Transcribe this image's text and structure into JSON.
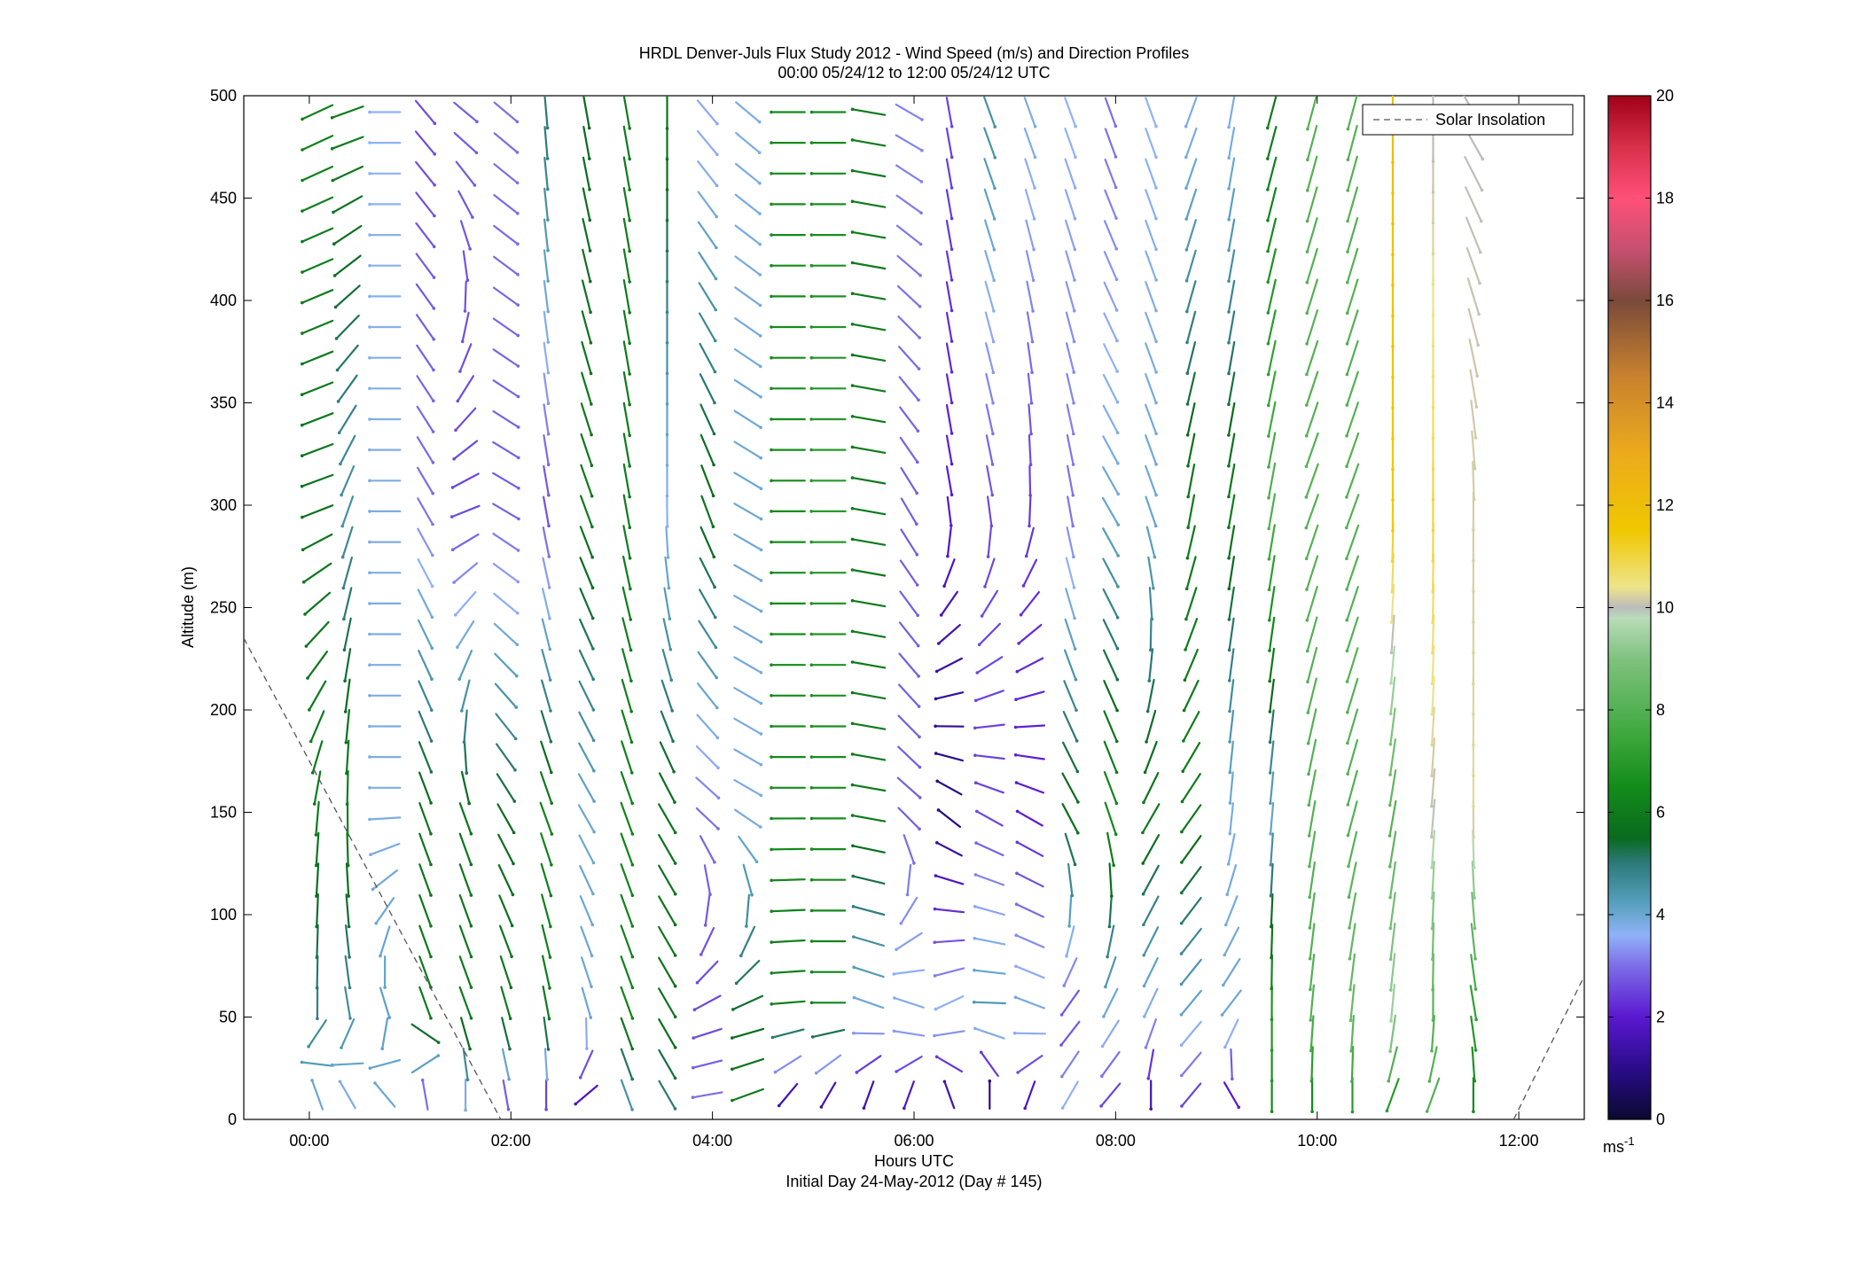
{
  "chart_data": {
    "type": "quiver",
    "title": "HRDL Denver-Juls Flux Study 2012 - Wind Speed (m/s) and Direction Profiles",
    "subtitle": "00:00 05/24/12 to 12:00 05/24/12  UTC",
    "xlabel": "Hours UTC",
    "xlabel2": "Initial Day 24-May-2012 (Day # 145)",
    "ylabel": "Altitude (m)",
    "xlim": [
      -0.65,
      12.65
    ],
    "ylim": [
      0,
      500
    ],
    "x_ticks": [
      {
        "value": 0,
        "label": "00:00"
      },
      {
        "value": 2,
        "label": "02:00"
      },
      {
        "value": 4,
        "label": "04:00"
      },
      {
        "value": 6,
        "label": "06:00"
      },
      {
        "value": 8,
        "label": "08:00"
      },
      {
        "value": 10,
        "label": "10:00"
      },
      {
        "value": 12,
        "label": "12:00"
      }
    ],
    "y_ticks": [
      {
        "value": 0,
        "label": "0"
      },
      {
        "value": 50,
        "label": "50"
      },
      {
        "value": 100,
        "label": "100"
      },
      {
        "value": 150,
        "label": "150"
      },
      {
        "value": 200,
        "label": "200"
      },
      {
        "value": 250,
        "label": "250"
      },
      {
        "value": 300,
        "label": "300"
      },
      {
        "value": 350,
        "label": "350"
      },
      {
        "value": 400,
        "label": "400"
      },
      {
        "value": 450,
        "label": "450"
      },
      {
        "value": 500,
        "label": "500"
      }
    ],
    "legend": {
      "label": "Solar Insolation",
      "position": "top-right",
      "line_style": "dashed"
    },
    "solar_insolation": [
      {
        "x": -0.65,
        "y": 235
      },
      {
        "x": 1.9,
        "y": 0
      },
      {
        "x": 11.95,
        "y": 0
      },
      {
        "x": 12.65,
        "y": 70
      }
    ],
    "colorbar": {
      "min": 0,
      "max": 20,
      "ticks": [
        "0",
        "2",
        "4",
        "6",
        "8",
        "10",
        "12",
        "14",
        "16",
        "18",
        "20"
      ],
      "unit_label": "ms",
      "unit_exponent": "-1",
      "stops": [
        {
          "v": 0,
          "c": "#0b0930"
        },
        {
          "v": 1,
          "c": "#2a0c8a"
        },
        {
          "v": 2,
          "c": "#5a18d0"
        },
        {
          "v": 3,
          "c": "#7d6ee8"
        },
        {
          "v": 3.6,
          "c": "#8fb2f7"
        },
        {
          "v": 4.2,
          "c": "#59a1c0"
        },
        {
          "v": 5,
          "c": "#2c7a7a"
        },
        {
          "v": 5.5,
          "c": "#0a6a1e"
        },
        {
          "v": 6.5,
          "c": "#138c1a"
        },
        {
          "v": 7.5,
          "c": "#3da83d"
        },
        {
          "v": 9,
          "c": "#7fc27f"
        },
        {
          "v": 9.8,
          "c": "#b9dcb9"
        },
        {
          "v": 10,
          "c": "#bbbbbb"
        },
        {
          "v": 10.4,
          "c": "#eee48a"
        },
        {
          "v": 11.5,
          "c": "#f0c800"
        },
        {
          "v": 13,
          "c": "#ebab1c"
        },
        {
          "v": 14.5,
          "c": "#c9822e"
        },
        {
          "v": 16,
          "c": "#7a4a3a"
        },
        {
          "v": 17,
          "c": "#c75070"
        },
        {
          "v": 18,
          "c": "#ff5078"
        },
        {
          "v": 19,
          "c": "#d8304a"
        },
        {
          "v": 20,
          "c": "#a00018"
        }
      ]
    },
    "grid": false,
    "field": {
      "description_note": "",
      "times": [
        0.08,
        0.38,
        0.75,
        1.15,
        1.55,
        1.95,
        2.35,
        2.75,
        3.15,
        3.55,
        3.95,
        4.35,
        4.75,
        5.15,
        5.55,
        5.95,
        6.35,
        6.75,
        7.15,
        7.55,
        7.95,
        8.35,
        8.75,
        9.15,
        9.55,
        9.95,
        10.35,
        10.75,
        11.15,
        11.55
      ],
      "altitudes": [
        12,
        27,
        42,
        57,
        72,
        87,
        102,
        117,
        132,
        147,
        162,
        177,
        192,
        207,
        222,
        237,
        252,
        267,
        282,
        297,
        312,
        327,
        342,
        357,
        372,
        387,
        402,
        417,
        432,
        447,
        462,
        477,
        492
      ],
      "anchors": [
        {
          "t": 0.08,
          "speed": [
            4.0,
            4.8,
            6.0,
            5.8,
            6.2
          ],
          "dir": [
            110,
            270,
            265,
            200,
            205
          ]
        },
        {
          "t": 0.38,
          "speed": [
            3.8,
            4.5,
            6.2,
            4.5,
            6.0
          ],
          "dir": [
            120,
            280,
            270,
            250,
            200
          ]
        },
        {
          "t": 0.75,
          "speed": [
            4.0,
            4.2,
            3.8,
            3.8,
            3.6
          ],
          "dir": [
            130,
            295,
            180,
            180,
            180
          ]
        },
        {
          "t": 1.15,
          "speed": [
            3.0,
            6.0,
            5.8,
            3.0,
            2.6
          ],
          "dir": [
            100,
            290,
            290,
            300,
            310
          ]
        },
        {
          "t": 1.55,
          "speed": [
            3.8,
            6.0,
            5.8,
            2.5,
            2.8
          ],
          "dir": [
            270,
            290,
            290,
            200,
            320
          ]
        },
        {
          "t": 1.95,
          "speed": [
            2.8,
            6.0,
            5.5,
            2.8,
            3.0
          ],
          "dir": [
            280,
            285,
            300,
            330,
            320
          ]
        },
        {
          "t": 2.35,
          "speed": [
            2.5,
            6.0,
            6.2,
            2.6,
            5.0
          ],
          "dir": [
            270,
            280,
            290,
            280,
            275
          ]
        },
        {
          "t": 2.75,
          "speed": [
            1.8,
            4.0,
            4.0,
            6.0,
            5.5
          ],
          "dir": [
            220,
            285,
            300,
            290,
            280
          ]
        },
        {
          "t": 3.15,
          "speed": [
            4.5,
            6.2,
            6.2,
            6.0,
            6.0
          ],
          "dir": [
            290,
            290,
            290,
            280,
            280
          ]
        },
        {
          "t": 3.55,
          "speed": [
            5.0,
            5.8,
            5.8,
            3.6,
            5.8
          ],
          "dir": [
            300,
            300,
            300,
            270,
            270
          ]
        },
        {
          "t": 3.95,
          "speed": [
            3.0,
            2.5,
            3.0,
            5.8,
            3.5
          ],
          "dir": [
            190,
            200,
            320,
            290,
            310
          ]
        },
        {
          "t": 4.35,
          "speed": [
            6.0,
            5.5,
            3.8,
            4.0,
            3.8
          ],
          "dir": [
            200,
            195,
            330,
            330,
            320
          ]
        },
        {
          "t": 4.75,
          "speed": [
            1.5,
            6.0,
            6.5,
            6.5,
            6.5
          ],
          "dir": [
            230,
            185,
            180,
            180,
            180
          ]
        },
        {
          "t": 5.15,
          "speed": [
            1.5,
            6.2,
            6.5,
            7.0,
            6.5
          ],
          "dir": [
            240,
            180,
            180,
            180,
            180
          ]
        },
        {
          "t": 5.55,
          "speed": [
            1.5,
            3.8,
            6.0,
            6.0,
            6.0
          ],
          "dir": [
            250,
            160,
            170,
            170,
            170
          ]
        },
        {
          "t": 5.95,
          "speed": [
            1.8,
            3.8,
            2.8,
            2.8,
            3.2
          ],
          "dir": [
            250,
            150,
            320,
            300,
            330
          ]
        },
        {
          "t": 6.35,
          "speed": [
            1.5,
            3.8,
            0.8,
            2.0,
            2.5
          ],
          "dir": [
            110,
            210,
            140,
            280,
            280
          ]
        },
        {
          "t": 6.75,
          "speed": [
            1.0,
            4.5,
            2.5,
            2.6,
            4.5
          ],
          "dir": [
            90,
            180,
            150,
            280,
            290
          ]
        },
        {
          "t": 7.15,
          "speed": [
            1.8,
            4.0,
            2.0,
            2.4,
            3.8
          ],
          "dir": [
            250,
            160,
            150,
            270,
            290
          ]
        },
        {
          "t": 7.55,
          "speed": [
            3.6,
            2.5,
            5.8,
            3.0,
            3.6
          ],
          "dir": [
            240,
            230,
            300,
            280,
            290
          ]
        },
        {
          "t": 7.95,
          "speed": [
            2.5,
            3.8,
            6.5,
            4.0,
            3.0
          ],
          "dir": [
            230,
            240,
            290,
            300,
            290
          ]
        },
        {
          "t": 8.35,
          "speed": [
            1.5,
            3.6,
            6.0,
            4.0,
            3.6
          ],
          "dir": [
            270,
            245,
            240,
            290,
            290
          ]
        },
        {
          "t": 8.75,
          "speed": [
            2.5,
            4.0,
            6.0,
            6.0,
            3.8
          ],
          "dir": [
            230,
            230,
            235,
            260,
            250
          ]
        },
        {
          "t": 9.15,
          "speed": [
            2.0,
            4.0,
            3.8,
            6.0,
            3.8
          ],
          "dir": [
            300,
            230,
            265,
            260,
            260
          ]
        },
        {
          "t": 9.55,
          "speed": [
            6.5,
            7.0,
            4.0,
            8.0,
            6.0
          ],
          "dir": [
            270,
            270,
            265,
            260,
            255
          ]
        },
        {
          "t": 9.95,
          "speed": [
            6.5,
            8.0,
            8.0,
            8.0,
            8.0
          ],
          "dir": [
            270,
            265,
            260,
            250,
            255
          ]
        },
        {
          "t": 10.35,
          "speed": [
            7.0,
            8.5,
            8.0,
            8.0,
            8.0
          ],
          "dir": [
            270,
            265,
            255,
            250,
            255
          ]
        },
        {
          "t": 10.75,
          "speed": [
            7.0,
            9.5,
            8.0,
            11.5,
            12.0
          ],
          "dir": [
            250,
            265,
            260,
            270,
            270
          ]
        },
        {
          "t": 11.15,
          "speed": [
            8.0,
            8.0,
            10.0,
            11.0,
            10.0
          ],
          "dir": [
            250,
            270,
            265,
            270,
            270
          ]
        },
        {
          "t": 11.55,
          "speed": [
            6.5,
            7.0,
            10.3,
            10.2,
            10.0
          ],
          "dir": [
            270,
            280,
            270,
            270,
            300
          ]
        }
      ],
      "anchor_altitudes": [
        12,
        50,
        150,
        300,
        480
      ]
    }
  }
}
